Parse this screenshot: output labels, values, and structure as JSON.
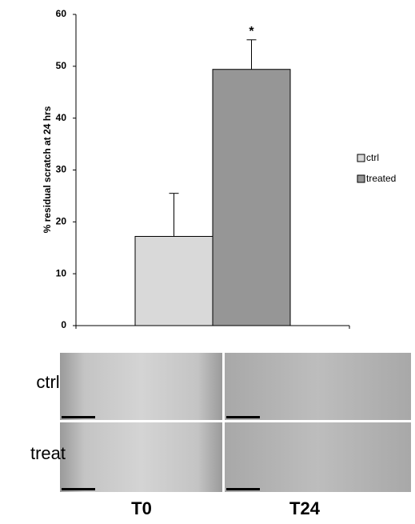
{
  "chart_data": {
    "type": "bar",
    "y_label": "% residual scratch at 24 hrs",
    "categories": [
      null
    ],
    "series": [
      {
        "name": "ctrl",
        "color": "#d9d9d9",
        "values": [
          17.2
        ],
        "error": [
          8.3
        ]
      },
      {
        "name": "treated",
        "color": "#969696",
        "values": [
          49.4
        ],
        "error": [
          5.7
        ]
      }
    ],
    "annotations": [
      {
        "text": "*",
        "series": 1
      }
    ],
    "ylim": [
      0,
      60
    ],
    "yticks": [
      0,
      10,
      20,
      30,
      40,
      50,
      60
    ],
    "grid": false,
    "legend": "right"
  },
  "image_panel": {
    "row_labels": [
      "ctrl",
      "treat"
    ],
    "column_labels": [
      "T0",
      "T24"
    ]
  }
}
